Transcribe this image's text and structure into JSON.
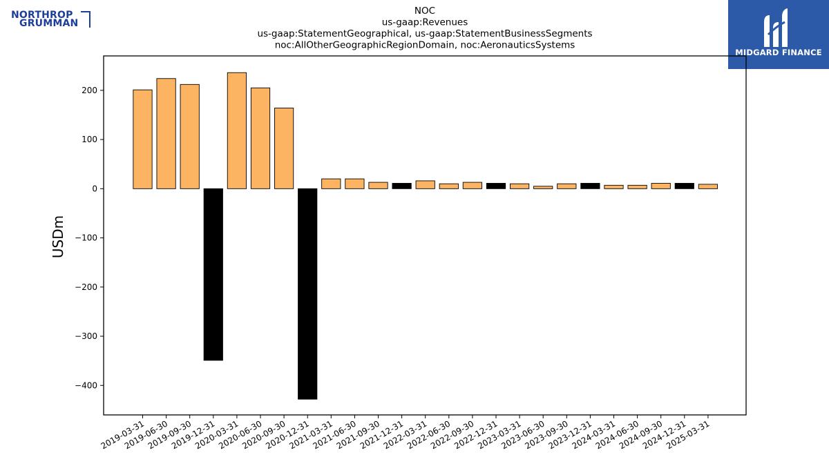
{
  "logos": {
    "left_line1": "NORTHROP",
    "left_line2": "GRUMMAN",
    "right_brand": "MIDGARD FINANCE"
  },
  "chart_data": {
    "type": "bar",
    "title_lines": [
      "NOC",
      "us-gaap:Revenues",
      "us-gaap:StatementGeographical, us-gaap:StatementBusinessSegments",
      "noc:AllOtherGeographicRegionDomain, noc:AeronauticsSystems"
    ],
    "ylabel": "USDm",
    "xlabel": "",
    "ylim": [
      -460,
      270
    ],
    "yticks": [
      -400,
      -300,
      -200,
      -100,
      0,
      100,
      200
    ],
    "grid": false,
    "categories": [
      "2019-03-31",
      "2019-06-30",
      "2019-09-30",
      "2019-12-31",
      "2020-03-31",
      "2020-06-30",
      "2020-09-30",
      "2020-12-31",
      "2021-03-31",
      "2021-06-30",
      "2021-09-30",
      "2021-12-31",
      "2022-03-31",
      "2022-06-30",
      "2022-09-30",
      "2022-12-31",
      "2023-03-31",
      "2023-06-30",
      "2023-09-30",
      "2023-12-31",
      "2024-03-31",
      "2024-06-30",
      "2024-09-30",
      "2024-12-31",
      "2025-03-31"
    ],
    "values": [
      201,
      224,
      212,
      -349,
      236,
      205,
      164,
      -428,
      20,
      20,
      13,
      11,
      16,
      10,
      13,
      11,
      10,
      5,
      10,
      11,
      7,
      7,
      11,
      11,
      9
    ],
    "colors": [
      "#fdb462",
      "#fdb462",
      "#fdb462",
      "#000000",
      "#fdb462",
      "#fdb462",
      "#fdb462",
      "#000000",
      "#fdb462",
      "#fdb462",
      "#fdb462",
      "#000000",
      "#fdb462",
      "#fdb462",
      "#fdb462",
      "#000000",
      "#fdb462",
      "#fdb462",
      "#fdb462",
      "#000000",
      "#fdb462",
      "#fdb462",
      "#fdb462",
      "#000000",
      "#fdb462"
    ]
  }
}
